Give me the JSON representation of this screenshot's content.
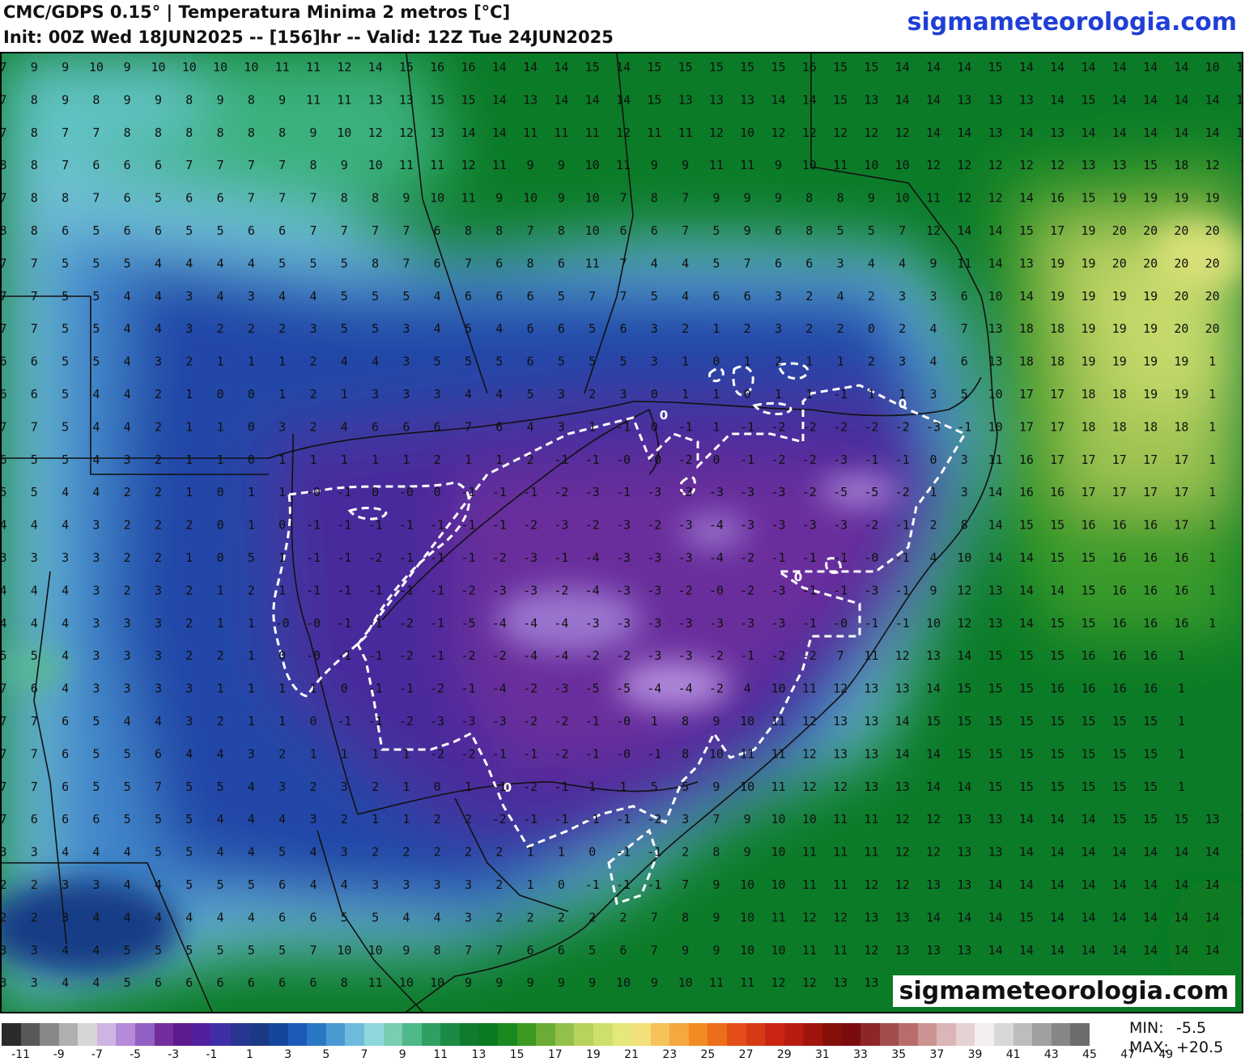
{
  "header": {
    "title_line1": "CMC/GDPS 0.15° | Temperatura Minima 2 metros [°C]",
    "title_line2": "Init: 00Z Wed 18JUN2025 -- [156]hr -- Valid: 12Z Tue 24JUN2025",
    "brand_top": "sigmameteorologia.com"
  },
  "map": {
    "brand_bottom": "sigmameteorologia.com",
    "contour_label": "0",
    "grid_rows": [
      "7 9 9 10 9 10 10 10 10 11 11 12 14 15 16 16 14 14 14 15 14 15 15 15 15 15 16 15 15 14 14 14 15 14 14 14 14 14 14 10 11 1",
      "7 8 9 8 9 9 8 9 8 9 11 11 13 13 15 15 14 13 14 14 14 15 13 13 13 14 14 15 13 14 14 13 13 13 14 15 14 14 14 14 15 1",
      "7 8 7 7 8 8 8 8 8 8 9 10 12 12 13 14 14 11 11 11 12 11 11 12 10 12 12 12 12 12 14 14 13 14 13 14 14 14 14 14 15 14",
      "8 8 7 6 6 6 7 7 7 7 8 9 10 11 11 12 11 9 9 10 11 9 9 11 11 9 10 11 10 10 12 12 12 12 12 13 13 15 18 12 1",
      "7 8 8 7 6 5 6 6 7 7 7 8 8 9 10 11 9 10 9 10 7 8 7 9 9 9 8 8 9 10 11 12 12 14 16 15 19 19 19 19 1",
      "8 8 6 5 6 6 5 5 6 6 7 7 7 7 6 8 8 7 8 10 6 6 7 5 9 6 8 5 5 7 12 14 14 15 17 19 20 20 20 20",
      "7 7 5 5 5 4 4 4 4 5 5 5 8 7 6 7 6 8 6 11 7 4 4 5 7 6 6 3 4 4 9 11 14 13 19 19 20 20 20 20",
      "7 7 5 5 4 4 3 4 3 4 4 5 5 5 4 6 6 6 5 7 7 5 4 6 6 3 2 4 2 3 3 6 10 14 19 19 19 19 20 20",
      "7 7 5 5 4 4 3 2 2 2 3 5 5 3 4 5 4 6 6 5 6 3 2 1 2 3 2 2 0 2 4 7 13 18 18 19 19 19 20 20",
      "6 6 5 5 4 3 2 1 1 1 2 4 4 3 5 5 5 6 5 5 5 3 1 0 1 2 1 1 2 3 4 6 13 18 18 19 19 19 19 1",
      "6 6 5 4 4 2 1 0 0 1 2 1 3 3 3 4 4 5 3 2 3 0 1 1 0 1 1 -1 1 1 3 5 10 17 17 18 18 19 19 1",
      "7 7 5 4 4 2 1 1 0 3 2 4 6 6 6 7 6 4 3 1 -1 0 -1 1 -1 -2 -2 -2 -2 -2 -3 -1 10 17 17 18 18 18 18 1",
      "6 5 5 4 3 2 1 1 0 1 1 1 1 1 2 1 1 2 -1 -1 -0 -0 -2 0 -1 -2 -2 -3 -1 -1 0 3 11 16 17 17 17 17 17 1",
      "5 5 4 4 2 2 1 0 1 1 -0 -1 0 -0 0 -1 -1 -1 -2 -3 -1 -3 -3 -3 -3 -3 -2 -5 -5 -2 1 3 14 16 16 17 17 17 17 1",
      "4 4 4 3 2 2 2 0 1 0 -1 -1 -1 -1 -1 -1 -1 -2 -3 -2 -3 -2 -3 -4 -3 -3 -3 -3 -2 -1 2 8 14 15 15 16 16 16 17 1",
      "3 3 3 3 2 2 1 0 5 1 -1 -1 -2 -1 -1 -1 -2 -3 -1 -4 -3 -3 -3 -4 -2 -1 -1 -1 -0 -1 4 10 14 14 15 15 16 16 16 1",
      "4 4 4 3 2 3 2 1 2 1 -1 -1 -1 -1 -1 -2 -3 -3 -2 -4 -3 -3 -2 -0 -2 -3 -1 -1 -3 -1 9 12 13 14 14 15 16 16 16 1",
      "4 4 4 3 3 3 2 1 1 -0 -0 -1 -1 -2 -1 -5 -4 -4 -4 -3 -3 -3 -3 -3 -3 -3 -1 -0 -1 -1 10 12 13 14 15 15 16 16 16 1",
      "5 5 4 3 3 3 2 2 1 0 -0 -1 -1 -2 -1 -2 -2 -4 -4 -2 -2 -3 -3 -2 -1 -2 -2 7 11 12 13 14 15 15 15 16 16 16 1",
      "7 6 4 3 3 3 3 1 1 1 1 0 -1 -1 -2 -1 -4 -2 -3 -5 -5 -4 -4 -2 4 10 11 12 13 13 14 15 15 15 16 16 16 16 1",
      "7 7 6 5 4 4 3 2 1 1 0 -1 -1 -2 -3 -3 -3 -2 -2 -1 -0 1 8 9 10 11 12 13 13 14 15 15 15 15 15 15 15 15 1",
      "7 7 6 5 5 6 4 4 3 2 1 1 1 1 -2 -2 -1 -1 -2 -1 -0 -1 8 10 11 11 12 13 13 14 14 15 15 15 15 15 15 15 1",
      "7 7 6 5 5 7 5 5 4 3 2 3 2 1 0 1 -1 -2 -1 1 1 5 5 9 10 11 12 12 13 13 14 14 15 15 15 15 15 15 1",
      "7 6 6 6 5 5 5 4 4 4 3 2 1 1 2 2 -2 -1 -1 -1 -1 -2 3 7 9 10 10 11 11 12 12 13 13 14 14 14 15 15 15 13 1",
      "3 3 4 4 4 5 5 4 4 5 4 3 2 2 2 2 2 1 1 0 -1 -1 2 8 9 10 11 11 11 12 12 13 13 14 14 14 14 14 14 14 1",
      "2 2 3 3 4 4 5 5 5 6 4 4 3 3 3 3 2 1 0 -1 -1 -1 7 9 10 10 11 11 12 12 13 13 14 14 14 14 14 14 14 14 1",
      "2 2 3 4 4 4 4 4 4 6 6 5 5 4 4 3 2 2 2 2 2 7 8 9 10 11 12 12 13 13 14 14 14 15 14 14 14 14 14 14 1",
      "3 3 4 4 5 5 5 5 5 5 7 10 10 9 8 7 7 6 6 5 6 7 9 9 10 10 11 11 12 13 13 13 14 14 14 14 14 14 14 14 1",
      "3 3 4 4 5 6 6 6 6 6 6 8 11 10 10 9 9 9 9 9 10 9 10 11 11 12 12 13 13 13 13 13 14 14 14 14 14 14 1"
    ]
  },
  "colorbar": {
    "colors": [
      "#2b2b2b",
      "#585858",
      "#888888",
      "#b0b0b0",
      "#d6d6d6",
      "#cfb5e2",
      "#b48ad9",
      "#9160c2",
      "#732e9b",
      "#5e1b8f",
      "#5020a0",
      "#3f2fa6",
      "#283591",
      "#1b3a86",
      "#14479c",
      "#1c59b8",
      "#2a78c4",
      "#4b99d3",
      "#6fbbdd",
      "#8ed8dd",
      "#79cdb2",
      "#4fb98a",
      "#2f9f62",
      "#1c8a45",
      "#107a2f",
      "#0a7a22",
      "#1a8a20",
      "#3c9a23",
      "#6aac35",
      "#93c04a",
      "#b7d35c",
      "#cfdf6c",
      "#e5e87a",
      "#f2e07a",
      "#f5c35a",
      "#f4a83f",
      "#f28b22",
      "#ec6d1a",
      "#e34d17",
      "#d63a15",
      "#c92512",
      "#b81c10",
      "#9f150d",
      "#84100a",
      "#7a0c10",
      "#8d2628",
      "#a34c4d",
      "#b86d6c",
      "#cb9492",
      "#dbb6b6",
      "#e6d2d3",
      "#f4efef",
      "#d8d8d8",
      "#bdbdbd",
      "#a0a0a0",
      "#868686",
      "#6c6c6c"
    ],
    "tick_labels": [
      "-11",
      "-9",
      "-7",
      "-5",
      "-3",
      "-1",
      "1",
      "3",
      "5",
      "7",
      "9",
      "11",
      "13",
      "15",
      "17",
      "19",
      "21",
      "23",
      "25",
      "27",
      "29",
      "31",
      "33",
      "35",
      "37",
      "39",
      "41",
      "43",
      "45",
      "47",
      "49"
    ]
  },
  "stats": {
    "min_label": "MIN:",
    "min_value": "-5.5",
    "max_label": "MAX:",
    "max_value": "+20.5"
  }
}
